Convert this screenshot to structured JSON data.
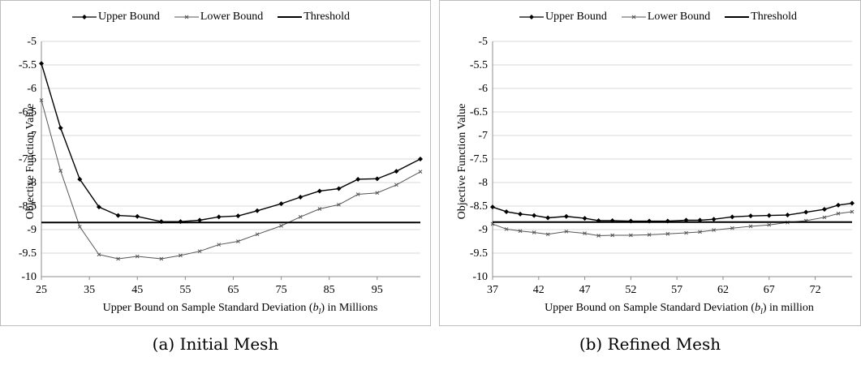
{
  "panels": [
    {
      "caption": "(a) Initial Mesh",
      "xlabel_pre": "Upper Bound on Sample Standard Deviation (",
      "xlabel_var": "b",
      "xlabel_sub": "l",
      "xlabel_post": ") in Millions",
      "ylabel": "Objective Function Value",
      "legend": [
        "Upper Bound",
        "Lower Bound",
        "Threshold"
      ]
    },
    {
      "caption": "(b) Refined Mesh",
      "xlabel_pre": "Upper Bound on Sample Standard Deviation (",
      "xlabel_var": "b",
      "xlabel_sub": "l",
      "xlabel_post": ") in million",
      "ylabel": "Objective Function Value",
      "legend": [
        "Upper Bound",
        "Lower Bound",
        "Threshold"
      ]
    }
  ],
  "chart_data": [
    {
      "type": "line",
      "title": "",
      "xlabel": "Upper Bound on Sample Standard Deviation (bl) in Millions",
      "ylabel": "Objective Function Value",
      "xlim": [
        25,
        104
      ],
      "ylim": [
        -10,
        -5
      ],
      "x_ticks": [
        25,
        35,
        45,
        55,
        65,
        75,
        85,
        95
      ],
      "y_ticks": [
        -5,
        -5.5,
        -6,
        -6.5,
        -7,
        -7.5,
        -8,
        -8.5,
        -9,
        -9.5,
        -10
      ],
      "legend_position": "top",
      "grid": "horizontal",
      "x": [
        25,
        29,
        33,
        37,
        41,
        45,
        50,
        54,
        58,
        62,
        66,
        70,
        75,
        79,
        83,
        87,
        91,
        95,
        99,
        104
      ],
      "series": [
        {
          "name": "Upper Bound",
          "marker": "diamond",
          "color": "#000000",
          "values": [
            -5.47,
            -6.84,
            -7.93,
            -8.52,
            -8.7,
            -8.72,
            -8.83,
            -8.83,
            -8.8,
            -8.73,
            -8.71,
            -8.6,
            -8.45,
            -8.31,
            -8.18,
            -8.13,
            -7.93,
            -7.92,
            -7.76,
            -7.5
          ]
        },
        {
          "name": "Lower Bound",
          "marker": "x",
          "color": "#555555",
          "values": [
            -6.25,
            -7.75,
            -8.94,
            -9.53,
            -9.62,
            -9.57,
            -9.62,
            -9.55,
            -9.46,
            -9.32,
            -9.25,
            -9.1,
            -8.92,
            -8.73,
            -8.56,
            -8.47,
            -8.25,
            -8.22,
            -8.05,
            -7.77
          ]
        },
        {
          "name": "Threshold",
          "marker": "none",
          "color": "#000000",
          "constant": -8.85
        }
      ]
    },
    {
      "type": "line",
      "title": "",
      "xlabel": "Upper Bound on Sample Standard Deviation (bl) in million",
      "ylabel": "Objective Function Value",
      "xlim": [
        37,
        76
      ],
      "ylim": [
        -10,
        -5
      ],
      "x_ticks": [
        37,
        42,
        47,
        52,
        57,
        62,
        67,
        72
      ],
      "y_ticks": [
        -5,
        -5.5,
        -6,
        -6.5,
        -7,
        -7.5,
        -8,
        -8.5,
        -9,
        -9.5,
        -10
      ],
      "legend_position": "top",
      "grid": "horizontal",
      "x": [
        37,
        38.5,
        40,
        41.5,
        43,
        45,
        47,
        48.5,
        50,
        52,
        54,
        56,
        58,
        59.5,
        61,
        63,
        65,
        67,
        69,
        71,
        73,
        74.5,
        76
      ],
      "series": [
        {
          "name": "Upper Bound",
          "marker": "diamond",
          "color": "#000000",
          "values": [
            -8.52,
            -8.62,
            -8.67,
            -8.7,
            -8.75,
            -8.72,
            -8.76,
            -8.81,
            -8.81,
            -8.82,
            -8.82,
            -8.82,
            -8.8,
            -8.8,
            -8.78,
            -8.73,
            -8.71,
            -8.7,
            -8.69,
            -8.63,
            -8.57,
            -8.48,
            -8.44
          ]
        },
        {
          "name": "Lower Bound",
          "marker": "x",
          "color": "#555555",
          "values": [
            -8.88,
            -8.99,
            -9.03,
            -9.06,
            -9.1,
            -9.04,
            -9.08,
            -9.13,
            -9.12,
            -9.12,
            -9.11,
            -9.09,
            -9.07,
            -9.05,
            -9.01,
            -8.97,
            -8.93,
            -8.9,
            -8.85,
            -8.81,
            -8.74,
            -8.66,
            -8.62
          ]
        },
        {
          "name": "Threshold",
          "marker": "none",
          "color": "#000000",
          "constant": -8.84
        }
      ]
    }
  ]
}
